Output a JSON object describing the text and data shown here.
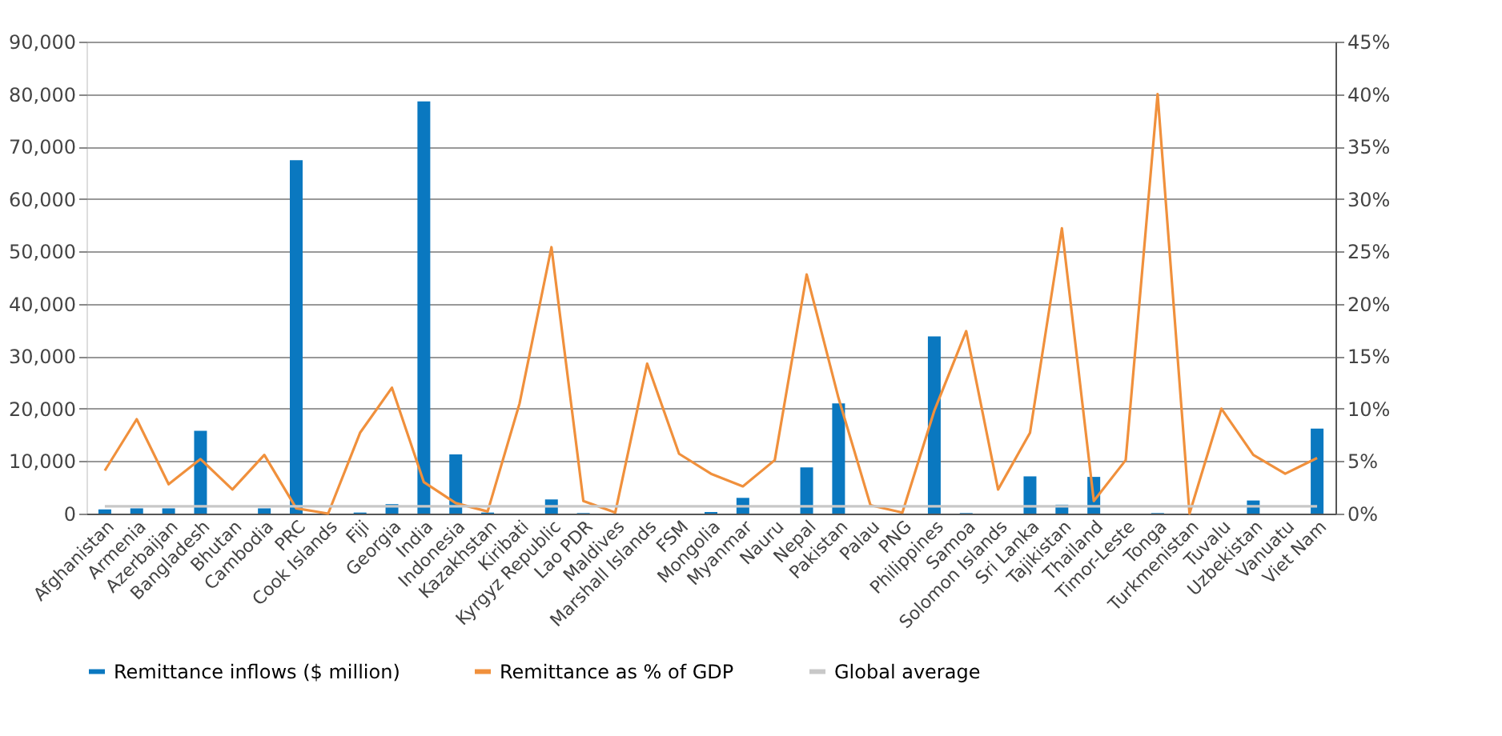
{
  "chart_data": {
    "type": "bar",
    "categories": [
      "Afghanistan",
      "Armenia",
      "Azerbaijan",
      "Bangladesh",
      "Bhutan",
      "Cambodia",
      "PRC",
      "Cook Islands",
      "Fiji",
      "Georgia",
      "India",
      "Indonesia",
      "Kazakhstan",
      "Kiribati",
      "Kyrgyz Republic",
      "Lao PDR",
      "Maldives",
      "Marshall Islands",
      "FSM",
      "Mongolia",
      "Myanmar",
      "Nauru",
      "Nepal",
      "Pakistan",
      "Palau",
      "PNG",
      "Philippines",
      "Samoa",
      "Solomon Islands",
      "Sri Lanka",
      "Tajikistan",
      "Thailand",
      "Timor-Leste",
      "Tonga",
      "Turkmenistan",
      "Tuvalu",
      "Uzbekistan",
      "Vanuatu",
      "Viet Nam"
    ],
    "series": [
      {
        "name": "Remittance inflows ($ million)",
        "color": "#0a78c0",
        "values": [
          800,
          1000,
          1000,
          15800,
          0,
          1000,
          67400,
          0,
          200,
          1800,
          78600,
          11300,
          200,
          0,
          2700,
          100,
          0,
          0,
          0,
          300,
          3000,
          0,
          8800,
          21000,
          0,
          0,
          33800,
          100,
          0,
          7100,
          1700,
          7000,
          0,
          100,
          0,
          0,
          2500,
          0,
          16200
        ]
      },
      {
        "name": "Remittance as % of GDP",
        "type": "line",
        "axis": "y2",
        "color": "#f0903c",
        "values": [
          4.1,
          9.0,
          2.8,
          5.2,
          2.3,
          5.6,
          0.5,
          0,
          7.7,
          12.0,
          3.0,
          1.0,
          0.2,
          10.5,
          25.4,
          1.2,
          0.1,
          14.3,
          5.7,
          3.8,
          2.6,
          5.1,
          22.8,
          11.0,
          0.8,
          0.1,
          9.8,
          17.4,
          2.3,
          7.7,
          27.2,
          1.2,
          5.1,
          40.0,
          0,
          10.0,
          5.6,
          3.8,
          5.3
        ]
      },
      {
        "name": "Global average",
        "type": "line",
        "axis": "y2",
        "color": "#c8c8c8",
        "values": [
          0.7,
          0.7,
          0.7,
          0.7,
          0.7,
          0.7,
          0.7,
          0.7,
          0.7,
          0.7,
          0.7,
          0.7,
          0.7,
          0.7,
          0.7,
          0.7,
          0.7,
          0.7,
          0.7,
          0.7,
          0.7,
          0.7,
          0.7,
          0.7,
          0.7,
          0.7,
          0.7,
          0.7,
          0.7,
          0.7,
          0.7,
          0.7,
          0.7,
          0.7,
          0.7,
          0.7,
          0.7,
          0.7,
          0.7
        ]
      }
    ],
    "ylim": [
      0,
      90000
    ],
    "yticks": [
      {
        "value": 0,
        "label": "0"
      },
      {
        "value": 10000,
        "label": "10,000"
      },
      {
        "value": 20000,
        "label": "20,000"
      },
      {
        "value": 30000,
        "label": "30,000"
      },
      {
        "value": 40000,
        "label": "40,000"
      },
      {
        "value": 50000,
        "label": "50,000"
      },
      {
        "value": 60000,
        "label": "60,000"
      },
      {
        "value": 70000,
        "label": "70,000"
      },
      {
        "value": 80000,
        "label": "80,000"
      },
      {
        "value": 90000,
        "label": "90,000"
      }
    ],
    "y2lim": [
      0,
      45
    ],
    "y2ticks": [
      {
        "value": 0,
        "label": "0%"
      },
      {
        "value": 5,
        "label": "5%"
      },
      {
        "value": 10,
        "label": "10%"
      },
      {
        "value": 15,
        "label": "15%"
      },
      {
        "value": 20,
        "label": "20%"
      },
      {
        "value": 25,
        "label": "25%"
      },
      {
        "value": 30,
        "label": "30%"
      },
      {
        "value": 35,
        "label": "35%"
      },
      {
        "value": 40,
        "label": "40%"
      },
      {
        "value": 45,
        "label": "45%"
      }
    ],
    "grid": "y",
    "legend": "bottom",
    "line_style": "solid",
    "marker": "none"
  }
}
